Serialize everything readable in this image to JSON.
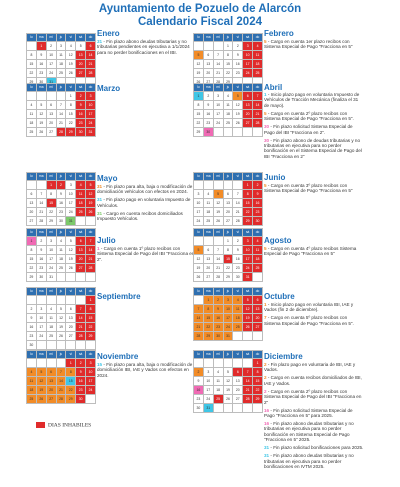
{
  "header": {
    "line1": "Ayuntamiento de Pozuelo de Alarcón",
    "line2": "Calendario Fiscal 2024"
  },
  "weekdays": [
    "lu",
    "ma",
    "mi",
    "ju",
    "vi",
    "sá",
    "do"
  ],
  "colors": {
    "holiday": "#e02b2b",
    "orange": "#f28c28",
    "cyan": "#3fc6e6",
    "yellow": "#ffe14d",
    "lightblue": "#a9d4ee",
    "green": "#7cc96a",
    "pink": "#f06ab4",
    "purple": "#9c5fc7"
  },
  "legend": {
    "label": "DIAS INHABILES"
  },
  "months": [
    {
      "id": "enero",
      "name": "Enero",
      "notes": [
        {
          "num": "31",
          "text": "- Fin plazo abono deudas tributarias y no tributarias pendientes en ejecutiva a 1/1/2024 para no perder bonificaciones en el IBI.",
          "color": "#3fc6e6"
        }
      ]
    },
    {
      "id": "febrero",
      "name": "Febrero",
      "notes": [
        {
          "num": "5",
          "text": "- Cargo en cuenta 1er plazo recibos con Sistema Especial de Pago \"Fracciona en 5\"",
          "color": "#f28c28"
        }
      ]
    },
    {
      "id": "marzo",
      "name": "Marzo",
      "notes": []
    },
    {
      "id": "abril",
      "name": "Abril",
      "notes": [
        {
          "num": "1",
          "text": "- Inicio plazo pago en voluntaria Impuesto de Vehículos de Tracción Mecánica (finaliza el 31 de mayo).",
          "color": "#3fc6e6"
        },
        {
          "num": "5",
          "text": "- Cargo en cuenta 2º plazo recibos con Sistema Especial de Pago \"Fracciona en 5\".",
          "color": "#f28c28"
        },
        {
          "num": "30",
          "text": "- Fin plazo solicitud Sistema Especial de Pago del IBI \"Fracciona en 2\".",
          "color": "#f06ab4"
        },
        {
          "num": "30",
          "text": "- Fin plazo abono de deudas tributarias y no tributarias en ejecutiva para no perder bonificación en el Sistema Especial de Pago del IBI \"Fracciona en 2\"",
          "color": "#f06ab4"
        }
      ]
    },
    {
      "id": "mayo",
      "name": "Mayo",
      "notes": [
        {
          "num": "31",
          "text": "- Fin plazo para alta, baja o modificación de domiciliación vehículos con efectos en 2024.",
          "color": "#f28c28"
        },
        {
          "num": "31",
          "text": "- Fin plazo pago en voluntaria Impuesto de Vehículos.",
          "color": "#3fc6e6"
        },
        {
          "num": "31",
          "text": "- Cargo en cuenta recibos domiciliados Impuesto Vehículos.",
          "color": "#7cc96a"
        }
      ]
    },
    {
      "id": "junio",
      "name": "Junio",
      "notes": [
        {
          "num": "5",
          "text": "- Cargo en cuenta 3º plazo recibos con Sistema Especial de Pago \"Fracciona en 5\"",
          "color": "#f28c28"
        }
      ]
    },
    {
      "id": "julio",
      "name": "Julio",
      "notes": [
        {
          "num": "1",
          "text": "- Cargo en cuenta 1º plazo recibos con Sistema Especial de Pago del IBI \"Fracciona en 2\".",
          "color": "#f06ab4"
        }
      ]
    },
    {
      "id": "agosto",
      "name": "Agosto",
      "notes": [
        {
          "num": "5",
          "text": "- Cargo en cuenta 4º plazo recibos Sistema Especial de Pago \"Fracciona en 5\"",
          "color": "#f28c28"
        }
      ]
    },
    {
      "id": "septiembre",
      "name": "Septiembre",
      "notes": []
    },
    {
      "id": "octubre",
      "name": "Octubre",
      "notes": [
        {
          "num": "1",
          "text": "- Inicio plazo pago en voluntaria IBI, IAE y Vados (fin 2 de diciembre).",
          "color": "#f28c28"
        },
        {
          "num": "7",
          "text": "- Cargo en cuenta 5º plazo recibos con Sistema Especial de Pago \"Fracciona en 5\".",
          "color": "#f28c28"
        }
      ]
    },
    {
      "id": "noviembre",
      "name": "Noviembre",
      "notes": [
        {
          "num": "15",
          "text": "- Fin plazo para alta, baja o modificación de domiciliación IBI, IAE y Vados con efectos en 2024.",
          "color": "#3fc6e6"
        }
      ]
    },
    {
      "id": "diciembre",
      "name": "Diciembre",
      "notes": [
        {
          "num": "2",
          "text": "- Fin plazo pago en voluntaria de IBI, IAE y Vados.",
          "color": "#f28c28"
        },
        {
          "num": "2",
          "text": "- Cargo en cuenta recibos domiciliados de IBI, IAE y Vados.",
          "color": "#f28c28"
        },
        {
          "num": "2",
          "text": "- Cargo en cuenta 2º plazo recibos con Sistema Especial de Pago del IBI \"Fracciona en 2\"",
          "color": "#f06ab4"
        },
        {
          "num": "16",
          "text": "- Fin plazo solicitud Sistema Especial de Pago \"Fracciona en 5\" para 2025.",
          "color": "#f06ab4"
        },
        {
          "num": "16",
          "text": "- Fin plazo abono deudas tributarias y no tributarias en ejecutiva para no perder bonificación en Sistema Especial de Pago \"Fracciona en 5\" 2025.",
          "color": "#f06ab4"
        },
        {
          "num": "31",
          "text": "- Fin plazo solicitud bonificaciones para 2025.",
          "color": "#3fc6e6"
        },
        {
          "num": "31",
          "text": "- Fin plazo abono deudas tributarias y no tributarias en ejecutiva para no perder bonificaciones en IVTM 2025.",
          "color": "#3fc6e6"
        }
      ]
    }
  ],
  "grids": [
    [
      [
        "",
        "1",
        "2",
        "3",
        "4",
        "5",
        "6",
        "7"
      ],
      [
        "8",
        "9",
        "10",
        "11",
        "12",
        "13",
        "14"
      ],
      [
        "15",
        "16",
        "17",
        "18",
        "19",
        "20",
        "21"
      ],
      [
        "22",
        "23",
        "24",
        "25",
        "26",
        "27",
        "28"
      ],
      [
        "29",
        "30",
        "31",
        "",
        "",
        "",
        ""
      ]
    ],
    [
      [
        "",
        "",
        "",
        "1",
        "2",
        "3",
        "4"
      ],
      [
        "5",
        "6",
        "7",
        "8",
        "9",
        "10",
        "11"
      ],
      [
        "12",
        "13",
        "14",
        "15",
        "16",
        "17",
        "18"
      ],
      [
        "19",
        "20",
        "21",
        "22",
        "23",
        "24",
        "25"
      ],
      [
        "26",
        "27",
        "28",
        "29",
        "",
        "",
        ""
      ]
    ],
    [
      [
        "",
        "",
        "",
        "",
        "1",
        "2",
        "3"
      ],
      [
        "4",
        "5",
        "6",
        "7",
        "8",
        "9",
        "10"
      ],
      [
        "11",
        "12",
        "13",
        "14",
        "15",
        "16",
        "17"
      ],
      [
        "18",
        "19",
        "20",
        "21",
        "22",
        "23",
        "24"
      ],
      [
        "25",
        "26",
        "27",
        "28",
        "29",
        "30",
        "31"
      ]
    ],
    [
      [
        "1",
        "2",
        "3",
        "4",
        "5",
        "6",
        "7"
      ],
      [
        "8",
        "9",
        "10",
        "11",
        "12",
        "13",
        "14"
      ],
      [
        "15",
        "16",
        "17",
        "18",
        "19",
        "20",
        "21"
      ],
      [
        "22",
        "23",
        "24",
        "25",
        "26",
        "27",
        "28"
      ],
      [
        "29",
        "30",
        "",
        "",
        "",
        "",
        ""
      ]
    ],
    [
      [
        "",
        "",
        "1",
        "2",
        "3",
        "4",
        "5"
      ],
      [
        "6",
        "7",
        "8",
        "9",
        "10",
        "11",
        "12"
      ],
      [
        "13",
        "14",
        "15",
        "16",
        "17",
        "18",
        "19"
      ],
      [
        "20",
        "21",
        "22",
        "23",
        "24",
        "25",
        "26"
      ],
      [
        "27",
        "28",
        "29",
        "30",
        "31",
        "",
        ""
      ]
    ],
    [
      [
        "",
        "",
        "",
        "",
        "",
        "1",
        "2"
      ],
      [
        "3",
        "4",
        "5",
        "6",
        "7",
        "8",
        "9"
      ],
      [
        "10",
        "11",
        "12",
        "13",
        "14",
        "15",
        "16"
      ],
      [
        "17",
        "18",
        "19",
        "20",
        "21",
        "22",
        "23"
      ],
      [
        "24",
        "25",
        "26",
        "27",
        "28",
        "29",
        "30"
      ]
    ],
    [
      [
        "1",
        "2",
        "3",
        "4",
        "5",
        "6",
        "7"
      ],
      [
        "8",
        "9",
        "10",
        "11",
        "12",
        "13",
        "14"
      ],
      [
        "15",
        "16",
        "17",
        "18",
        "19",
        "20",
        "21"
      ],
      [
        "22",
        "23",
        "24",
        "25",
        "26",
        "27",
        "28"
      ],
      [
        "29",
        "30",
        "31",
        "",
        "",
        "",
        ""
      ]
    ],
    [
      [
        "",
        "",
        "",
        "1",
        "2",
        "3",
        "4"
      ],
      [
        "5",
        "6",
        "7",
        "8",
        "9",
        "10",
        "11"
      ],
      [
        "12",
        "13",
        "14",
        "15",
        "16",
        "17",
        "18"
      ],
      [
        "19",
        "20",
        "21",
        "22",
        "23",
        "24",
        "25"
      ],
      [
        "26",
        "27",
        "28",
        "29",
        "30",
        "31",
        ""
      ]
    ],
    [
      [
        "",
        "",
        "",
        "",
        "",
        "",
        "1"
      ],
      [
        "2",
        "3",
        "4",
        "5",
        "6",
        "7",
        "8"
      ],
      [
        "9",
        "10",
        "11",
        "12",
        "13",
        "14",
        "15"
      ],
      [
        "16",
        "17",
        "18",
        "19",
        "20",
        "21",
        "22"
      ],
      [
        "23",
        "24",
        "25",
        "26",
        "27",
        "28",
        "29"
      ],
      [
        "30",
        "",
        "",
        "",
        "",
        "",
        ""
      ]
    ],
    [
      [
        "",
        "1",
        "2",
        "3",
        "4",
        "5",
        "6"
      ],
      [
        "7",
        "8",
        "9",
        "10",
        "11",
        "12",
        "13"
      ],
      [
        "14",
        "15",
        "16",
        "17",
        "18",
        "19",
        "20"
      ],
      [
        "21",
        "22",
        "23",
        "24",
        "25",
        "26",
        "27"
      ],
      [
        "28",
        "29",
        "30",
        "31",
        "",
        "",
        ""
      ]
    ],
    [
      [
        "",
        "",
        "",
        "",
        "1",
        "2",
        "3"
      ],
      [
        "4",
        "5",
        "6",
        "7",
        "8",
        "9",
        "10"
      ],
      [
        "11",
        "12",
        "13",
        "14",
        "15",
        "16",
        "17"
      ],
      [
        "18",
        "19",
        "20",
        "21",
        "22",
        "23",
        "24"
      ],
      [
        "25",
        "26",
        "27",
        "28",
        "29",
        "30",
        ""
      ]
    ],
    [
      [
        "",
        "",
        "",
        "",
        "",
        "",
        "1"
      ],
      [
        "2",
        "3",
        "4",
        "5",
        "6",
        "7",
        "8"
      ],
      [
        "9",
        "10",
        "11",
        "12",
        "13",
        "14",
        "15"
      ],
      [
        "16",
        "17",
        "18",
        "19",
        "20",
        "21",
        "22"
      ],
      [
        "23",
        "24",
        "25",
        "26",
        "27",
        "28",
        "29"
      ],
      [
        "30",
        "31",
        "",
        "",
        "",
        "",
        ""
      ]
    ]
  ],
  "highlights": [
    {
      "1": "holiday",
      "6": "holiday",
      "7": "holiday",
      "13": "holiday",
      "14": "holiday",
      "20": "holiday",
      "21": "holiday",
      "27": "holiday",
      "28": "holiday",
      "31": "cyan"
    },
    {
      "3": "holiday",
      "4": "holiday",
      "5": "orange",
      "10": "holiday",
      "11": "holiday",
      "17": "holiday",
      "18": "holiday",
      "24": "holiday",
      "25": "holiday"
    },
    {
      "2": "holiday",
      "3": "holiday",
      "9": "holiday",
      "10": "holiday",
      "16": "holiday",
      "17": "holiday",
      "23": "holiday",
      "24": "holiday",
      "28": "holiday",
      "29": "holiday",
      "30": "holiday",
      "31": "holiday"
    },
    {
      "1": "cyan",
      "5": "orange",
      "6": "holiday",
      "7": "holiday",
      "13": "holiday",
      "14": "holiday",
      "20": "holiday",
      "21": "holiday",
      "27": "holiday",
      "28": "holiday",
      "30": "pink"
    },
    {
      "1": "holiday",
      "2": "holiday",
      "4": "holiday",
      "5": "holiday",
      "11": "holiday",
      "12": "holiday",
      "15": "holiday",
      "18": "holiday",
      "19": "holiday",
      "25": "holiday",
      "26": "holiday",
      "31": "green"
    },
    {
      "1": "holiday",
      "2": "holiday",
      "5": "orange",
      "8": "holiday",
      "9": "holiday",
      "15": "holiday",
      "16": "holiday",
      "22": "holiday",
      "23": "holiday",
      "29": "holiday",
      "30": "holiday"
    },
    {
      "1": "pink",
      "6": "holiday",
      "7": "holiday",
      "13": "holiday",
      "14": "holiday",
      "20": "holiday",
      "21": "holiday",
      "27": "holiday",
      "28": "holiday"
    },
    {
      "3": "holiday",
      "4": "holiday",
      "5": "orange",
      "10": "holiday",
      "11": "holiday",
      "15": "holiday",
      "17": "holiday",
      "18": "holiday",
      "24": "holiday",
      "25": "holiday",
      "31": "holiday"
    },
    {
      "1": "holiday",
      "7": "holiday",
      "8": "holiday",
      "14": "holiday",
      "15": "holiday",
      "21": "holiday",
      "22": "holiday",
      "28": "holiday",
      "29": "holiday"
    },
    {
      "1": "orange",
      "2": "orange",
      "3": "orange",
      "4": "orange",
      "5": "holiday",
      "6": "holiday",
      "7": "orange",
      "8": "orange",
      "9": "orange",
      "10": "orange",
      "11": "orange",
      "12": "holiday",
      "13": "holiday",
      "14": "orange",
      "15": "orange",
      "16": "orange",
      "17": "orange",
      "18": "orange",
      "19": "holiday",
      "20": "holiday",
      "21": "orange",
      "22": "orange",
      "23": "orange",
      "24": "orange",
      "25": "orange",
      "26": "holiday",
      "27": "holiday",
      "28": "orange",
      "29": "orange",
      "30": "orange",
      "31": "orange"
    },
    {
      "1": "holiday",
      "2": "holiday",
      "3": "holiday",
      "4": "orange",
      "5": "orange",
      "6": "orange",
      "7": "orange",
      "8": "orange",
      "9": "holiday",
      "10": "holiday",
      "11": "orange",
      "12": "orange",
      "13": "orange",
      "14": "orange",
      "15": "cyan",
      "16": "holiday",
      "17": "holiday",
      "18": "orange",
      "19": "orange",
      "20": "orange",
      "21": "orange",
      "22": "orange",
      "23": "holiday",
      "24": "holiday",
      "25": "orange",
      "26": "orange",
      "27": "orange",
      "28": "orange",
      "29": "orange",
      "30": "holiday"
    },
    {
      "1": "holiday",
      "2": "orange",
      "6": "holiday",
      "7": "holiday",
      "8": "holiday",
      "14": "holiday",
      "15": "holiday",
      "16": "pink",
      "21": "holiday",
      "22": "holiday",
      "25": "holiday",
      "28": "holiday",
      "29": "holiday",
      "31": "cyan"
    }
  ]
}
